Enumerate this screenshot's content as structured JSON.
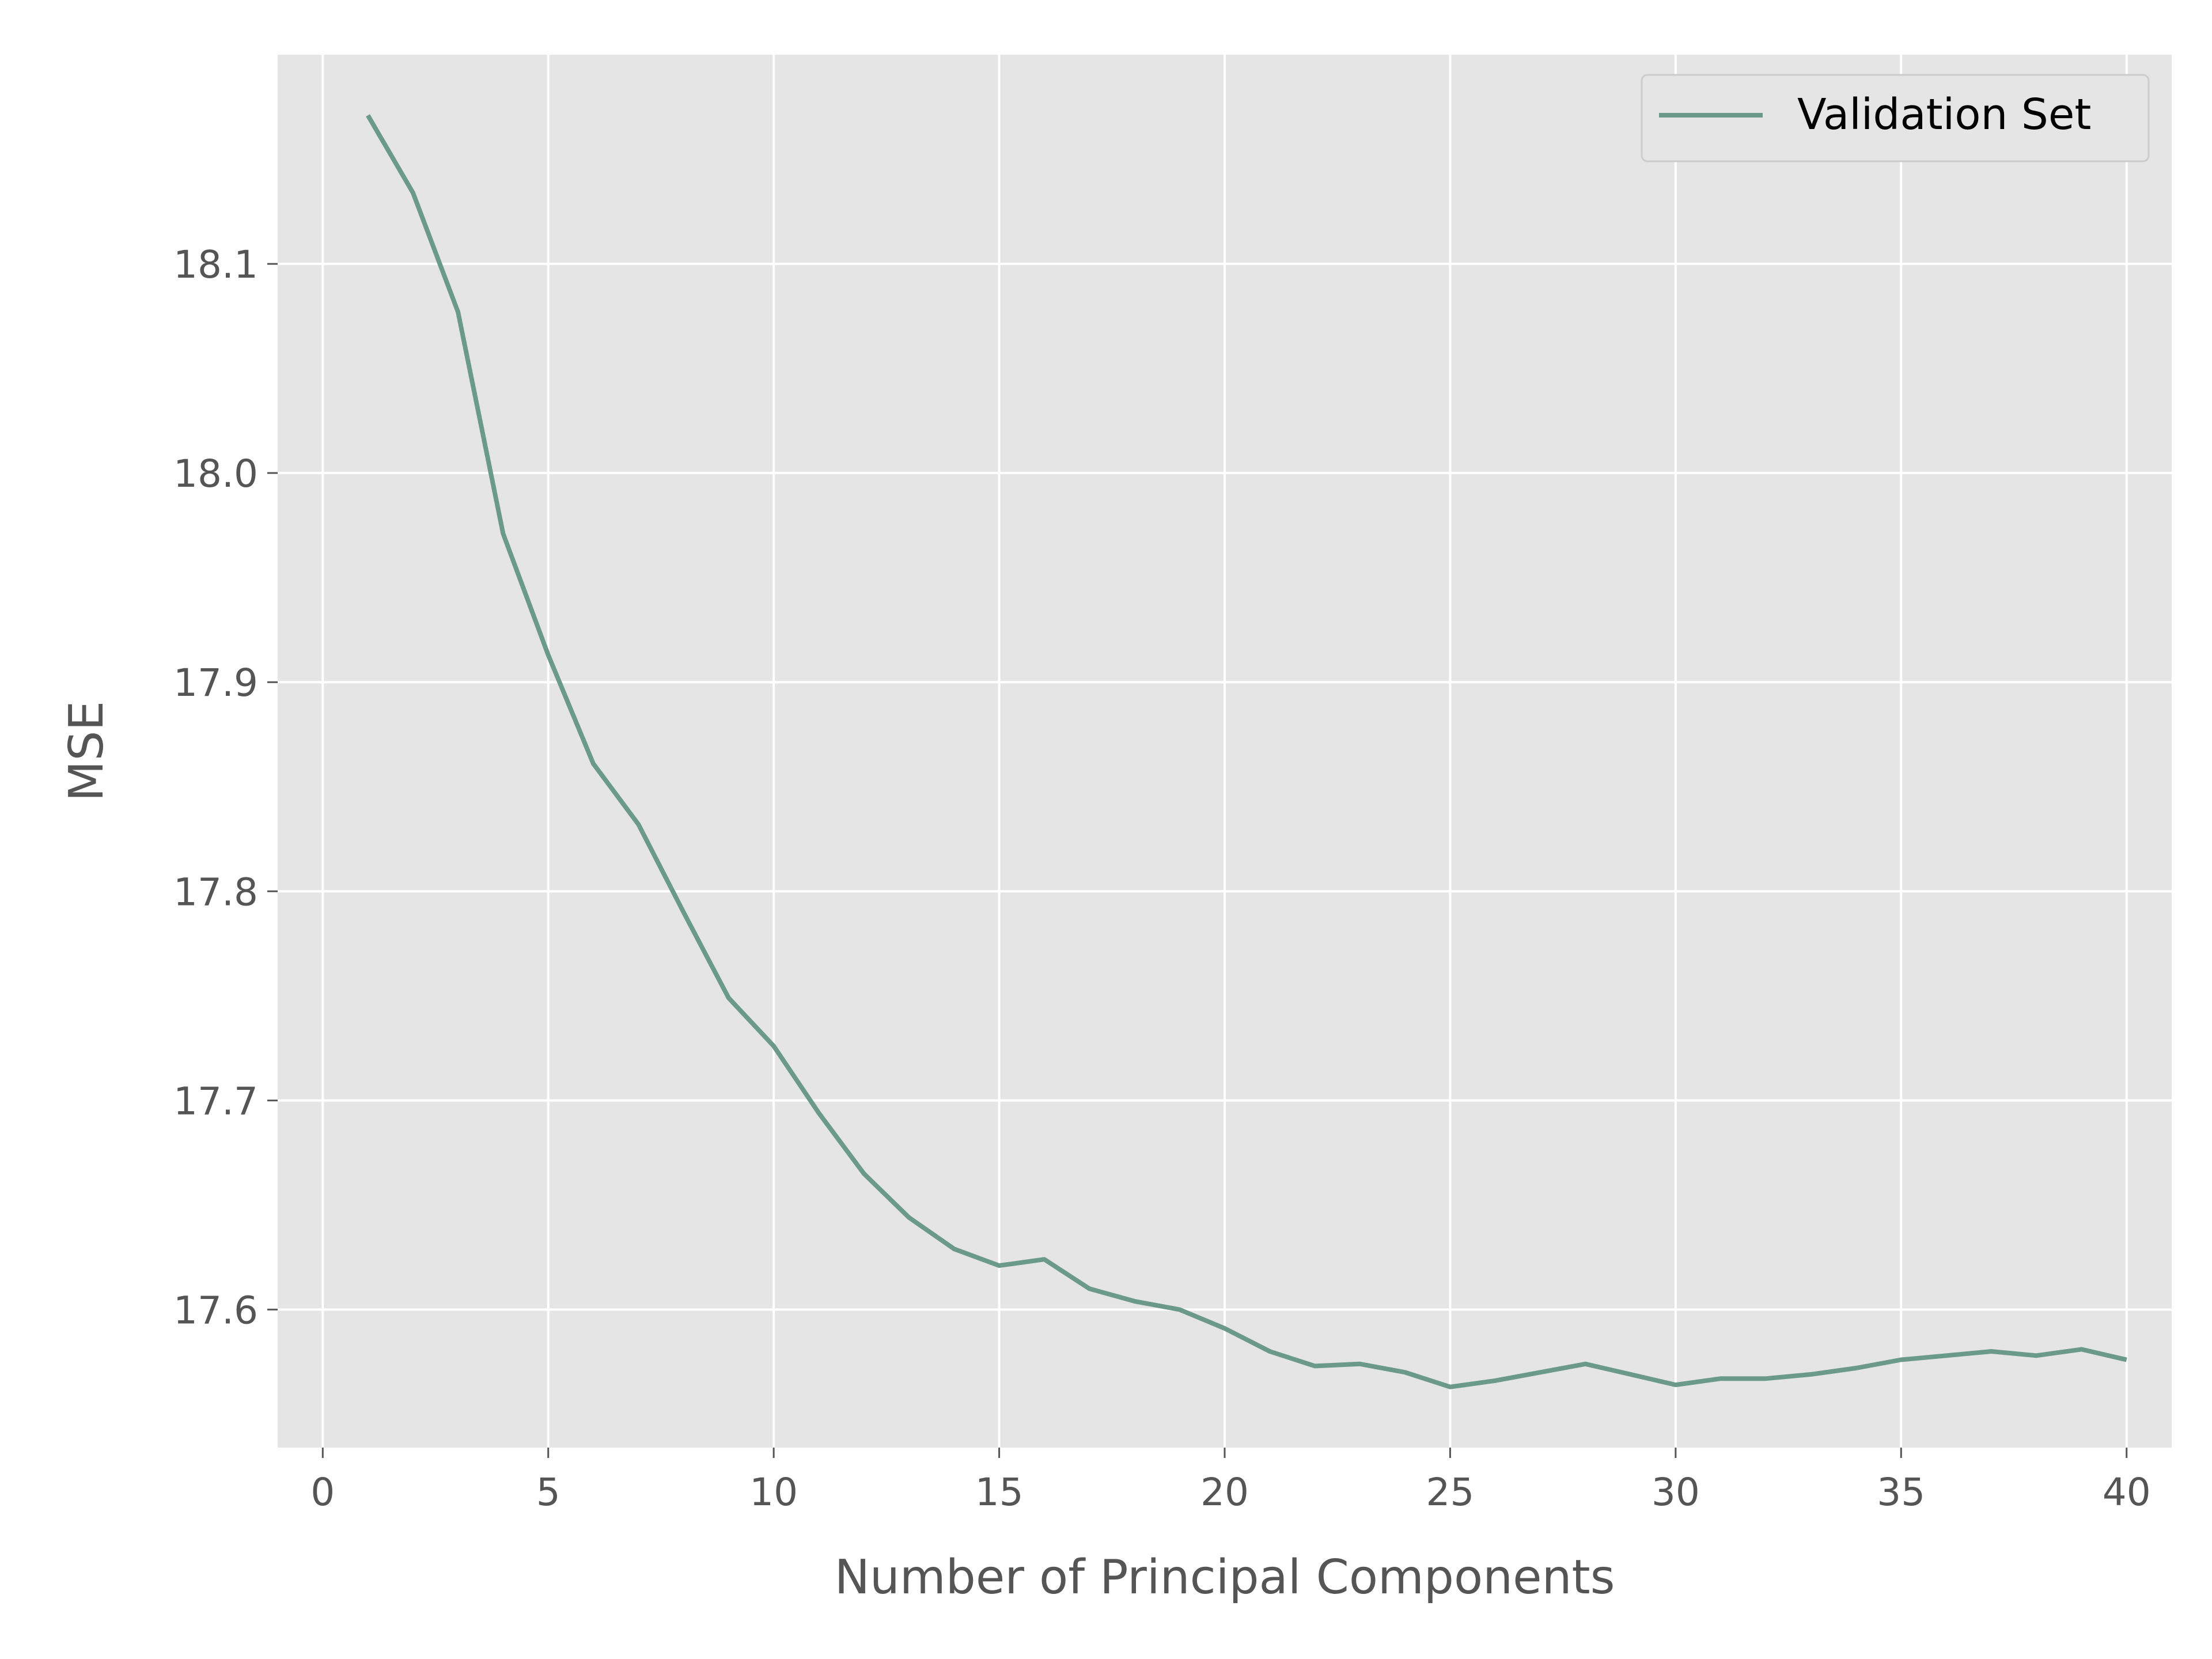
{
  "chart_data": {
    "type": "line",
    "title": "",
    "xlabel": "Number of Principal Components",
    "ylabel": "MSE",
    "xlim": [
      -1,
      41
    ],
    "ylim": [
      17.534,
      18.2
    ],
    "xticks": [
      0,
      5,
      10,
      15,
      20,
      25,
      30,
      35,
      40
    ],
    "yticks": [
      17.6,
      17.7,
      17.8,
      17.9,
      18.0,
      18.1
    ],
    "ytick_labels": [
      "17.6",
      "17.7",
      "17.8",
      "17.9",
      "18.0",
      "18.1"
    ],
    "grid": true,
    "legend_position": "top-right",
    "colors": {
      "line": "#6b9a8b",
      "plot_background": "#e5e5e5",
      "grid": "#ffffff"
    },
    "x": [
      1,
      2,
      3,
      4,
      5,
      6,
      7,
      8,
      9,
      10,
      11,
      12,
      13,
      14,
      15,
      16,
      17,
      18,
      19,
      20,
      21,
      22,
      23,
      24,
      25,
      26,
      27,
      28,
      29,
      30,
      31,
      32,
      33,
      34,
      35,
      36,
      37,
      38,
      39,
      40
    ],
    "series": [
      {
        "name": "Validation Set",
        "values": [
          18.171,
          18.134,
          18.077,
          17.971,
          17.913,
          17.861,
          17.832,
          17.79,
          17.749,
          17.726,
          17.694,
          17.665,
          17.644,
          17.629,
          17.621,
          17.624,
          17.61,
          17.604,
          17.6,
          17.591,
          17.58,
          17.573,
          17.574,
          17.57,
          17.563,
          17.566,
          17.57,
          17.574,
          17.569,
          17.564,
          17.567,
          17.567,
          17.569,
          17.572,
          17.576,
          17.578,
          17.58,
          17.578,
          17.581,
          17.576
        ]
      }
    ]
  }
}
